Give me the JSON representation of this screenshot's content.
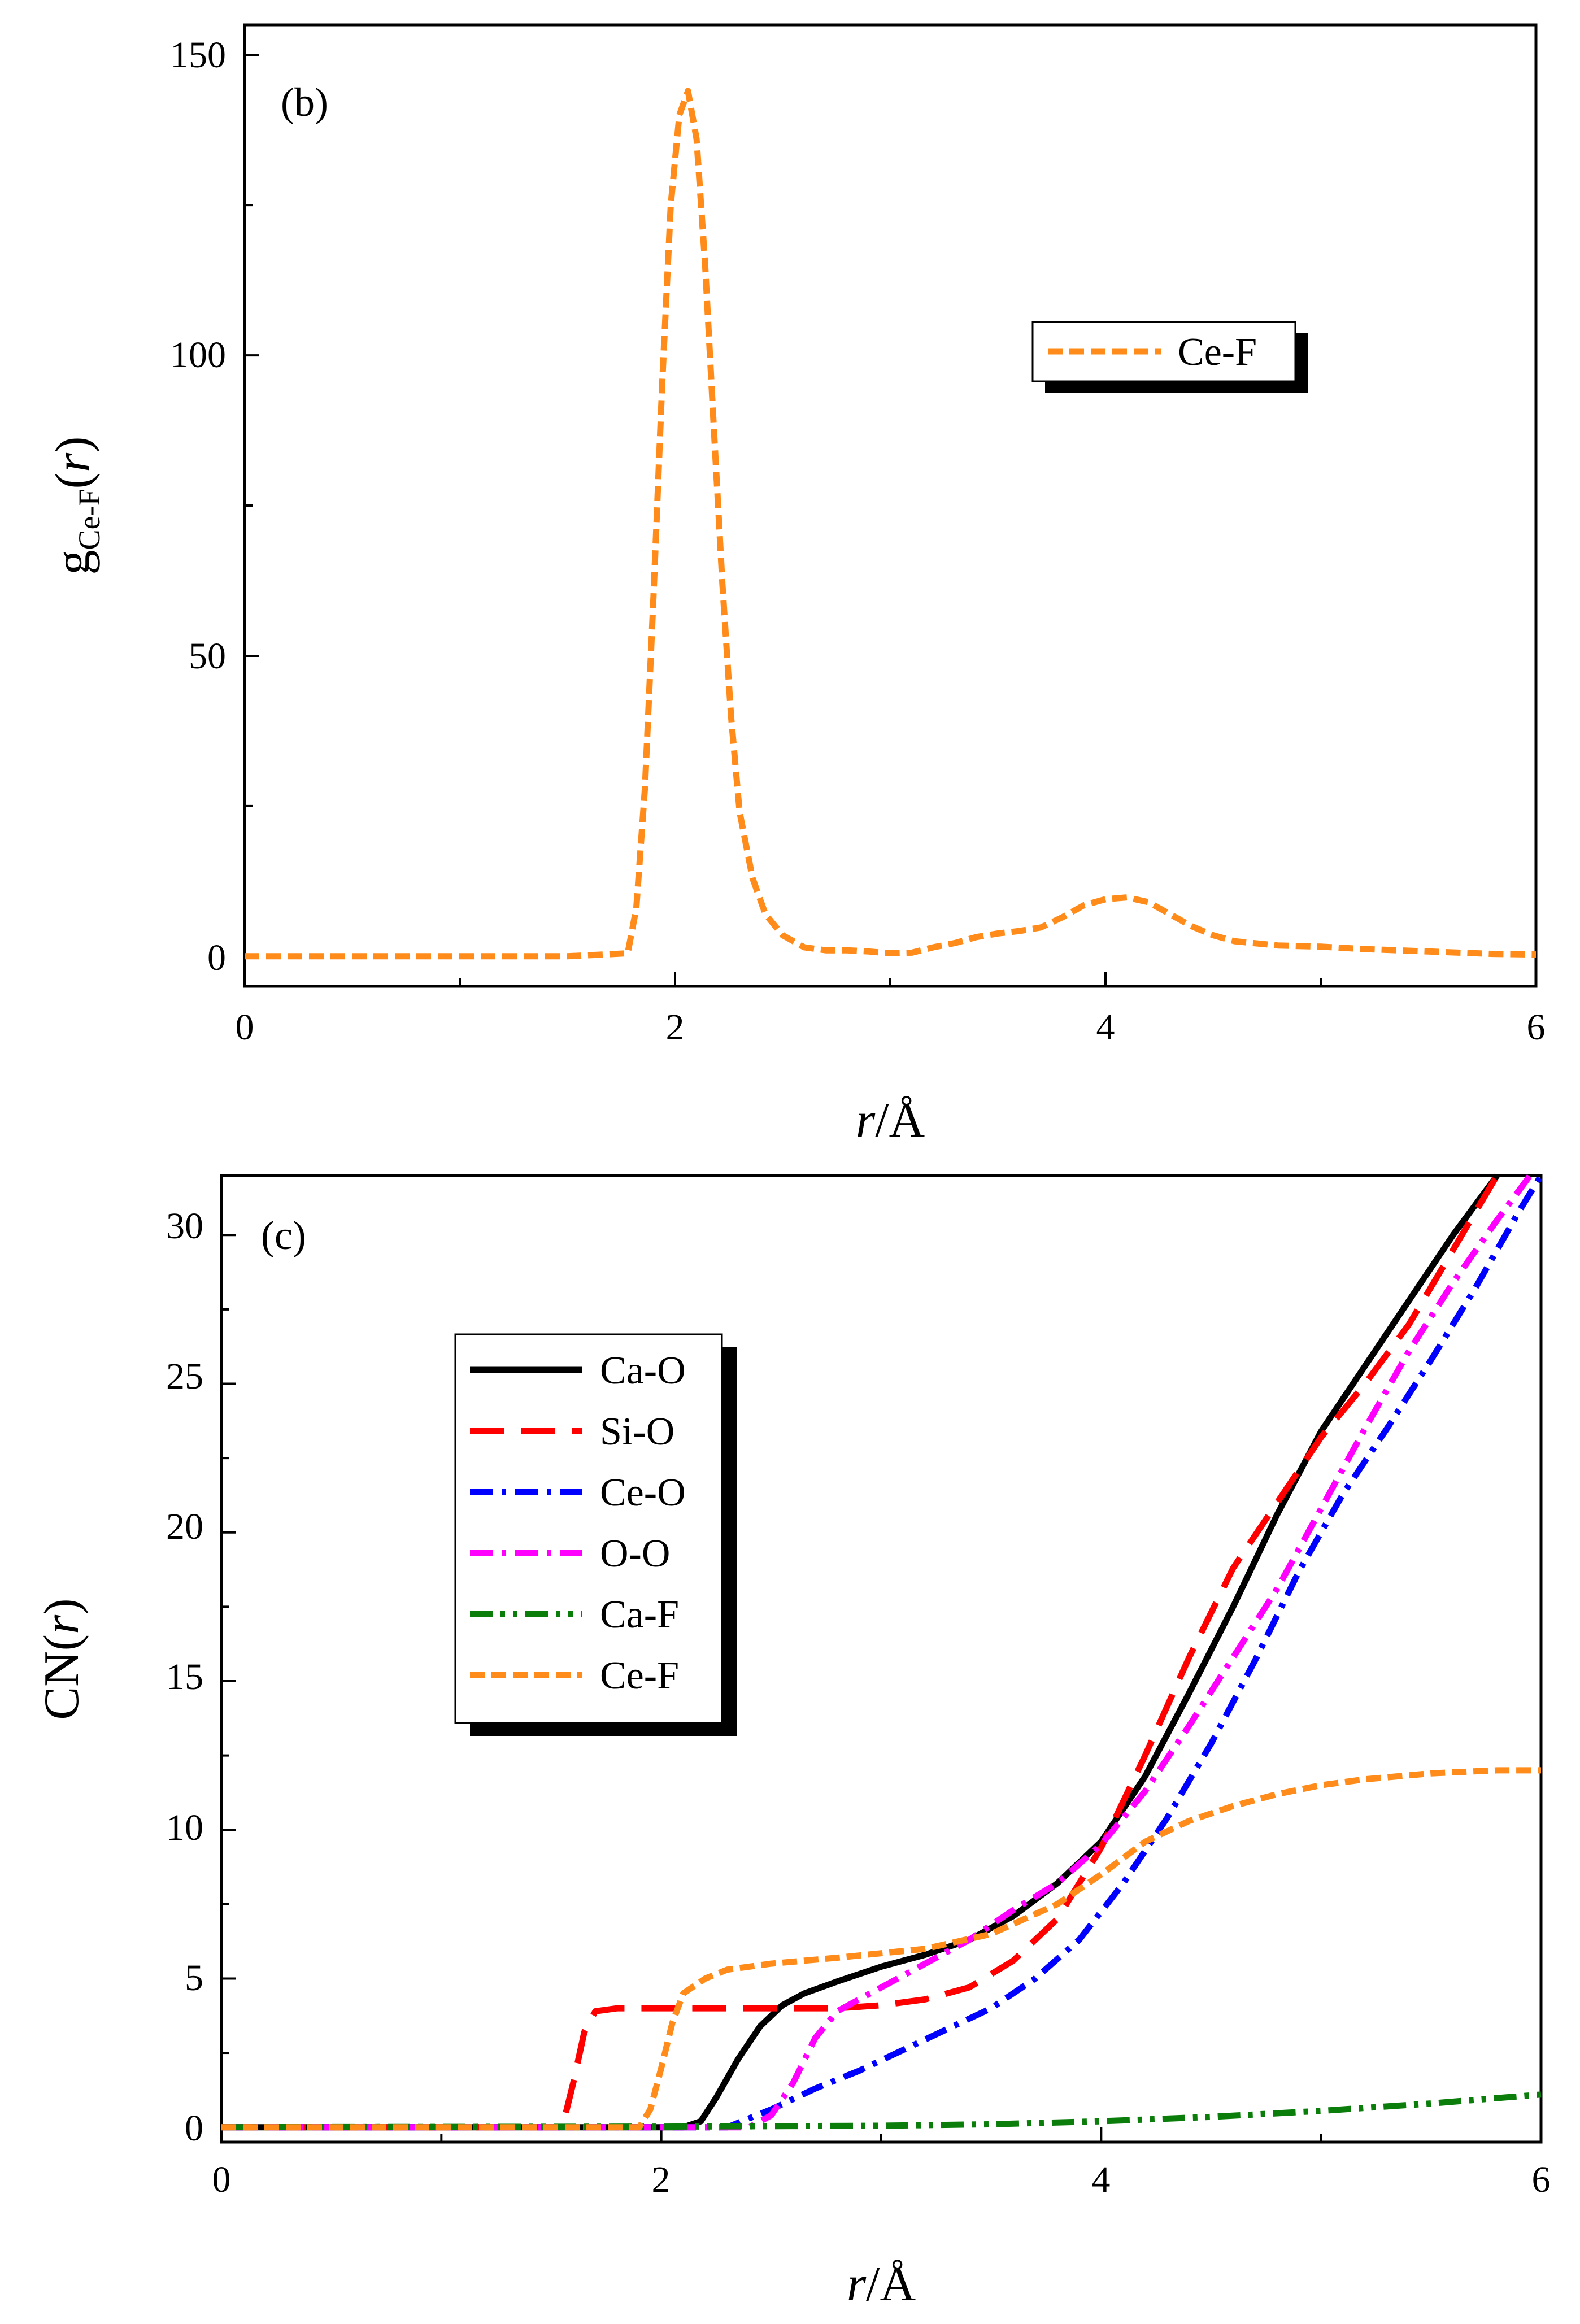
{
  "chart_data": [
    {
      "panel_label": "(b)",
      "type": "line",
      "xlabel_italic": "r",
      "xlabel_suffix": "/Å",
      "ylabel_main": "g",
      "ylabel_sub": "Ce-F",
      "ylabel_arg_open": "(",
      "ylabel_arg": "r",
      "ylabel_arg_close": ")",
      "xlim": [
        0,
        6
      ],
      "ylim": [
        -5,
        155
      ],
      "xticks": [
        0,
        2,
        4,
        6
      ],
      "yticks": [
        0,
        50,
        100,
        150
      ],
      "x_tick_labels": [
        "0",
        "2",
        "4",
        "6"
      ],
      "y_tick_labels": [
        "0",
        "50",
        "100",
        "150"
      ],
      "legend_position": "upper-right",
      "series": [
        {
          "name": "Ce-F",
          "color": "#FF8C1A",
          "dash": "dashed",
          "x": [
            0,
            0.5,
            1.0,
            1.5,
            1.78,
            1.82,
            1.86,
            1.9,
            1.94,
            1.98,
            2.02,
            2.06,
            2.1,
            2.14,
            2.18,
            2.22,
            2.26,
            2.3,
            2.36,
            2.42,
            2.5,
            2.6,
            2.7,
            2.8,
            2.9,
            3.0,
            3.1,
            3.2,
            3.3,
            3.4,
            3.5,
            3.6,
            3.7,
            3.8,
            3.9,
            4.0,
            4.1,
            4.2,
            4.3,
            4.4,
            4.5,
            4.6,
            4.8,
            5.0,
            5.2,
            5.5,
            5.8,
            6.0
          ],
          "values": [
            0,
            0,
            0,
            0,
            0.5,
            8,
            28,
            60,
            95,
            125,
            140,
            144,
            136,
            115,
            88,
            62,
            40,
            24,
            13,
            7,
            3.5,
            1.5,
            1,
            1,
            0.8,
            0.5,
            0.6,
            1.5,
            2.2,
            3.2,
            3.8,
            4.2,
            4.8,
            6.5,
            8.5,
            9.5,
            9.8,
            9.0,
            7.0,
            5.0,
            3.5,
            2.5,
            1.8,
            1.6,
            1.2,
            0.8,
            0.4,
            0.3
          ]
        }
      ]
    },
    {
      "panel_label": "(c)",
      "type": "line",
      "xlabel_italic": "r",
      "xlabel_suffix": "/Å",
      "ylabel_main": "CN",
      "ylabel_arg_open": "(",
      "ylabel_arg": "r",
      "ylabel_arg_close": ")",
      "xlim": [
        0,
        6
      ],
      "ylim": [
        -0.5,
        32
      ],
      "xticks": [
        0,
        2,
        4,
        6
      ],
      "yticks": [
        0,
        5,
        10,
        15,
        20,
        25,
        30
      ],
      "x_tick_labels": [
        "0",
        "2",
        "4",
        "6"
      ],
      "y_tick_labels": [
        "0",
        "5",
        "10",
        "15",
        "20",
        "25",
        "30"
      ],
      "legend_position": "upper-left",
      "series": [
        {
          "name": "Ca-O",
          "color": "#000000",
          "dash": "solid",
          "x": [
            0,
            2.1,
            2.18,
            2.25,
            2.35,
            2.45,
            2.55,
            2.65,
            2.8,
            3.0,
            3.2,
            3.4,
            3.6,
            3.8,
            4.0,
            4.2,
            4.4,
            4.6,
            4.8,
            5.0,
            5.2,
            5.4,
            5.6,
            5.8
          ],
          "values": [
            0,
            0,
            0.2,
            1.0,
            2.3,
            3.4,
            4.1,
            4.5,
            4.9,
            5.4,
            5.8,
            6.3,
            7.1,
            8.2,
            9.6,
            11.8,
            14.6,
            17.5,
            20.6,
            23.4,
            25.6,
            27.8,
            30.0,
            32.2
          ]
        },
        {
          "name": "Si-O",
          "color": "#FF0000",
          "dash": "longdash",
          "x": [
            0,
            1.55,
            1.6,
            1.65,
            1.7,
            1.8,
            2.0,
            2.2,
            2.4,
            2.6,
            2.8,
            3.0,
            3.2,
            3.4,
            3.6,
            3.8,
            4.0,
            4.2,
            4.4,
            4.6,
            4.8,
            5.0,
            5.2,
            5.4,
            5.6,
            5.8
          ],
          "values": [
            0,
            0,
            1.5,
            3.2,
            3.9,
            4.0,
            4.0,
            4.0,
            4.0,
            4.0,
            4.0,
            4.1,
            4.3,
            4.7,
            5.6,
            7.0,
            9.4,
            12.5,
            15.8,
            18.8,
            21.0,
            23.2,
            25.0,
            27.0,
            29.5,
            32.0
          ]
        },
        {
          "name": "Ce-O",
          "color": "#0000FF",
          "dash": "dashdot",
          "x": [
            0,
            2.3,
            2.5,
            2.7,
            2.9,
            3.1,
            3.3,
            3.5,
            3.7,
            3.9,
            4.1,
            4.3,
            4.5,
            4.7,
            4.9,
            5.1,
            5.3,
            5.5,
            5.7,
            5.9,
            6.0
          ],
          "values": [
            0,
            0,
            0.6,
            1.3,
            1.9,
            2.6,
            3.3,
            4.0,
            5.0,
            6.3,
            8.2,
            10.4,
            12.9,
            15.7,
            18.7,
            21.3,
            23.5,
            25.8,
            28.2,
            30.8,
            32.0
          ]
        },
        {
          "name": "O-O",
          "color": "#FF00FF",
          "dash": "dashdot",
          "x": [
            0,
            2.4,
            2.5,
            2.6,
            2.7,
            2.8,
            2.9,
            3.0,
            3.2,
            3.4,
            3.6,
            3.8,
            4.0,
            4.2,
            4.4,
            4.6,
            4.8,
            5.0,
            5.2,
            5.4,
            5.6,
            5.8,
            5.95
          ],
          "values": [
            0,
            0,
            0.4,
            1.5,
            3.0,
            3.9,
            4.3,
            4.7,
            5.5,
            6.3,
            7.3,
            8.2,
            9.5,
            11.3,
            13.5,
            15.8,
            18.1,
            20.8,
            23.5,
            26.1,
            28.4,
            30.5,
            32.2
          ]
        },
        {
          "name": "Ca-F",
          "color": "#0A7D0A",
          "dash": "dashdotdot",
          "x": [
            0,
            2.0,
            3.0,
            3.5,
            4.0,
            4.5,
            5.0,
            5.5,
            6.0
          ],
          "values": [
            0,
            0.02,
            0.05,
            0.1,
            0.2,
            0.35,
            0.55,
            0.8,
            1.1
          ]
        },
        {
          "name": "Ce-F",
          "color": "#FF8C1A",
          "dash": "dashed",
          "x": [
            0,
            1.9,
            1.95,
            2.0,
            2.05,
            2.1,
            2.2,
            2.3,
            2.5,
            2.8,
            3.2,
            3.5,
            3.8,
            4.0,
            4.2,
            4.4,
            4.6,
            4.8,
            5.0,
            5.2,
            5.5,
            5.8,
            6.0
          ],
          "values": [
            0,
            0,
            0.6,
            2.0,
            3.5,
            4.5,
            5.0,
            5.3,
            5.5,
            5.7,
            6.0,
            6.5,
            7.5,
            8.5,
            9.6,
            10.3,
            10.8,
            11.2,
            11.5,
            11.7,
            11.9,
            12.0,
            12.0
          ]
        }
      ]
    }
  ]
}
